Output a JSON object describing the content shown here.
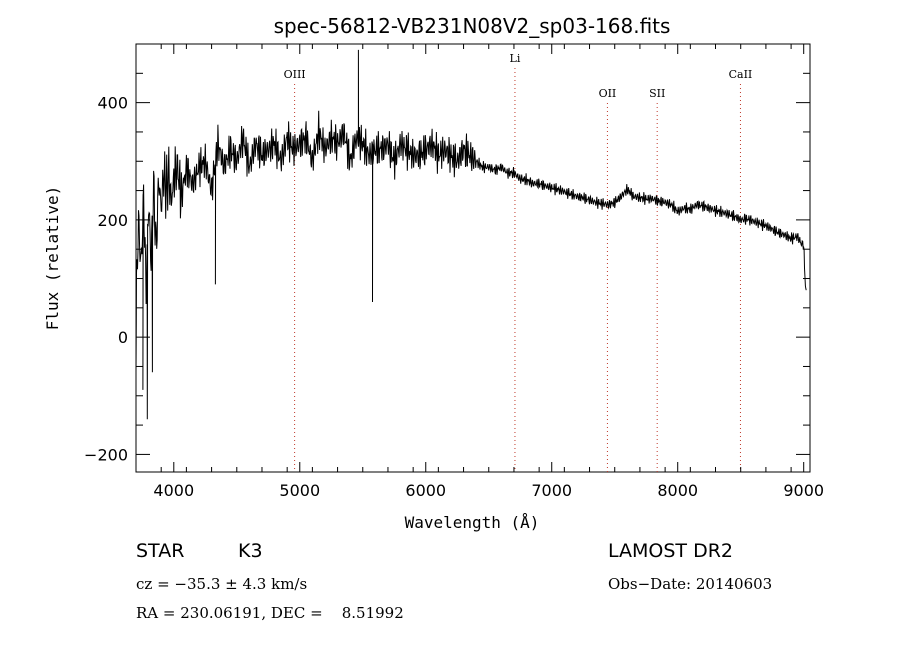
{
  "chart_data": {
    "type": "line",
    "title": "spec-56812-VB231N08V2_sp03-168.fits",
    "xlabel": "Wavelength (Å)",
    "ylabel": "Flux (relative)",
    "xlim": [
      3700,
      9050
    ],
    "ylim": [
      -230,
      500
    ],
    "xticks": [
      4000,
      5000,
      6000,
      7000,
      8000,
      9000
    ],
    "yticks": [
      -200,
      0,
      200,
      400
    ],
    "grid": false,
    "series": [
      {
        "x": [
          3700,
          3720,
          3740,
          3760,
          3780,
          3800,
          3820,
          3840,
          3860,
          3880,
          3900,
          3920,
          3940,
          3960,
          3980,
          4000,
          4030,
          4060,
          4100,
          4150,
          4200,
          4250,
          4300,
          4350,
          4400,
          4450,
          4500,
          4550,
          4600,
          4650,
          4700,
          4750,
          4800,
          4850,
          4900,
          4950,
          5000,
          5050,
          5100,
          5150,
          5200,
          5250,
          5300,
          5350,
          5400,
          5450,
          5500,
          5550,
          5600,
          5650,
          5700,
          5750,
          5800,
          5850,
          5900,
          5950,
          6000,
          6050,
          6100,
          6150,
          6200,
          6250,
          6300,
          6350,
          6400,
          6450,
          6500,
          6550,
          6600,
          6650,
          6700,
          6750,
          6800,
          6850,
          6900,
          6950,
          7000,
          7050,
          7100,
          7150,
          7200,
          7250,
          7300,
          7350,
          7400,
          7450,
          7500,
          7550,
          7600,
          7650,
          7700,
          7750,
          7800,
          7850,
          7900,
          7950,
          8000,
          8050,
          8100,
          8150,
          8200,
          8250,
          8300,
          8350,
          8400,
          8450,
          8500,
          8550,
          8600,
          8650,
          8700,
          8750,
          8800,
          8850,
          8900,
          8950,
          8980,
          9000,
          9010,
          9020
        ],
        "y": [
          50,
          200,
          120,
          240,
          80,
          230,
          130,
          260,
          150,
          270,
          220,
          280,
          250,
          280,
          230,
          270,
          290,
          240,
          290,
          260,
          290,
          300,
          250,
          330,
          290,
          320,
          300,
          340,
          290,
          330,
          310,
          320,
          330,
          300,
          340,
          320,
          330,
          340,
          300,
          350,
          320,
          340,
          330,
          350,
          300,
          340,
          330,
          310,
          320,
          320,
          330,
          300,
          330,
          320,
          310,
          310,
          320,
          330,
          310,
          320,
          310,
          300,
          320,
          310,
          300,
          290,
          290,
          285,
          290,
          280,
          280,
          270,
          268,
          262,
          262,
          258,
          255,
          252,
          248,
          244,
          240,
          238,
          234,
          230,
          228,
          226,
          230,
          240,
          252,
          240,
          238,
          236,
          236,
          232,
          230,
          226,
          214,
          220,
          218,
          226,
          224,
          220,
          216,
          213,
          210,
          206,
          200,
          202,
          198,
          194,
          190,
          184,
          178,
          174,
          168,
          172,
          160,
          158,
          100,
          80
        ]
      }
    ],
    "annotations": [
      {
        "label": "OIII",
        "x": 4959
      },
      {
        "label": "Li",
        "x": 6708
      },
      {
        "label": "OII",
        "x": 7442
      },
      {
        "label": "SII",
        "x": 7837
      },
      {
        "label": "CaII",
        "x": 8498
      }
    ]
  },
  "info": {
    "object_class": "STAR",
    "subclass": "K3",
    "survey": "LAMOST DR2",
    "cz": "cz = −35.3 ± 4.3 km/s",
    "obs_date": "Obs−Date: 20140603",
    "coords": "RA = 230.06191, DEC =    8.51992"
  }
}
